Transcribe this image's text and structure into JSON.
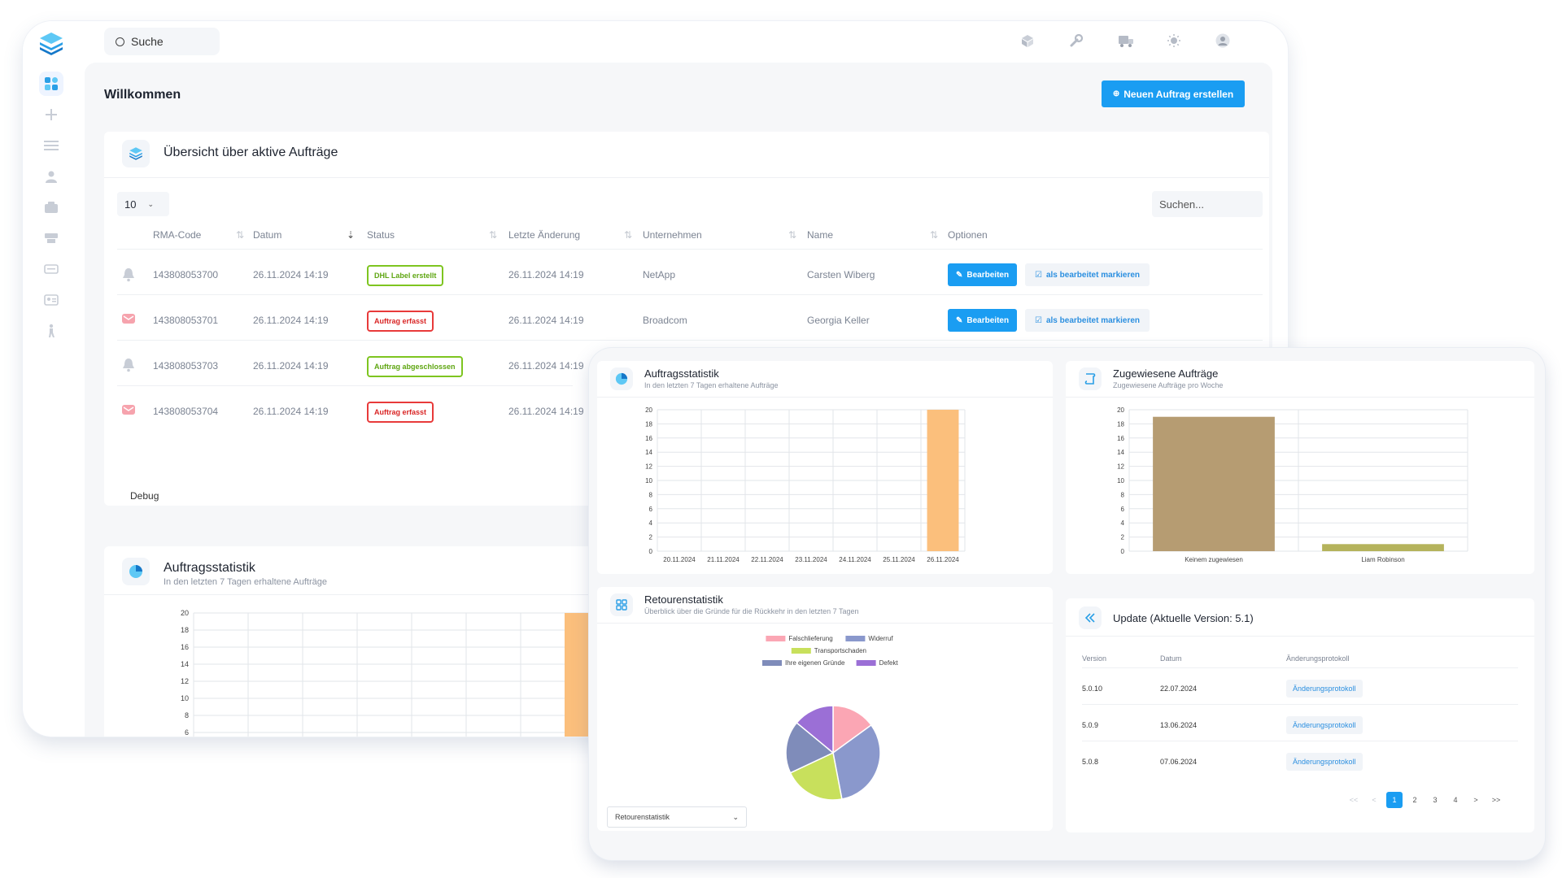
{
  "topbar": {
    "search_label": "Suche"
  },
  "page": {
    "welcome": "Willkommen",
    "new_order_label": "Neuen Auftrag erstellen"
  },
  "overview": {
    "title": "Übersicht über aktive Aufträge",
    "page_size": "10",
    "search_placeholder": "Suchen...",
    "columns": [
      "RMA-Code",
      "Datum",
      "Status",
      "Letzte Änderung",
      "Unternehmen",
      "Name",
      "Optionen"
    ],
    "rows": [
      {
        "icon": "bell-icon",
        "code": "143808053700",
        "date": "26.11.2024 14:19",
        "status": "DHL Label erstellt",
        "status_color": "green",
        "changed": "26.11.2024 14:19",
        "company": "NetApp",
        "name": "Carsten Wiberg",
        "edit": "Bearbeiten",
        "mark": "als bearbeitet markieren"
      },
      {
        "icon": "mail-icon",
        "code": "143808053701",
        "date": "26.11.2024 14:19",
        "status": "Auftrag erfasst",
        "status_color": "red",
        "changed": "26.11.2024 14:19",
        "company": "Broadcom",
        "name": "Georgia Keller",
        "edit": "Bearbeiten",
        "mark": "als bearbeitet markieren"
      },
      {
        "icon": "bell-icon",
        "code": "143808053703",
        "date": "26.11.2024 14:19",
        "status": "Auftrag abgeschlossen",
        "status_color": "green",
        "changed": "26.11.2024 14:19",
        "company": "",
        "name": "",
        "edit": "",
        "mark": ""
      },
      {
        "icon": "mail-icon",
        "code": "143808053704",
        "date": "26.11.2024 14:19",
        "status": "Auftrag erfasst",
        "status_color": "red",
        "changed": "26.11.2024 14:19",
        "company": "",
        "name": "",
        "edit": "",
        "mark": ""
      }
    ],
    "debug_label": "Debug"
  },
  "back_stats": {
    "title": "Auftragsstatistik",
    "subtitle": "In den letzten 7 Tagen erhaltene Aufträge",
    "yticks": [
      "20",
      "18",
      "16",
      "14",
      "12",
      "10",
      "8",
      "6"
    ]
  },
  "front": {
    "stats": {
      "title": "Auftragsstatistik",
      "subtitle": "In den letzten 7 Tagen erhaltene Aufträge"
    },
    "assigned": {
      "title": "Zugewiesene Aufträge",
      "subtitle": "Zugewiesene Aufträge pro Woche"
    },
    "returns": {
      "title": "Retourenstatistik",
      "subtitle": "Überblick über die Gründe für die Rückkehr in den letzten 7 Tagen",
      "select_value": "Retourenstatistik"
    },
    "update": {
      "title": "Update (Aktuelle Version: 5.1)",
      "columns": [
        "Version",
        "Datum",
        "Änderungsprotokoll"
      ],
      "rows": [
        {
          "version": "5.0.10",
          "date": "22.07.2024",
          "link": "Änderungsprotokoll"
        },
        {
          "version": "5.0.9",
          "date": "13.06.2024",
          "link": "Änderungsprotokoll"
        },
        {
          "version": "5.0.8",
          "date": "07.06.2024",
          "link": "Änderungsprotokoll"
        }
      ],
      "pagination": [
        "<<",
        "<",
        "1",
        "2",
        "3",
        "4",
        ">",
        ">>"
      ],
      "active_page": "1"
    }
  },
  "chart_data": [
    {
      "type": "bar",
      "title": "Auftragsstatistik",
      "categories": [
        "20.11.2024",
        "21.11.2024",
        "22.11.2024",
        "23.11.2024",
        "24.11.2024",
        "25.11.2024",
        "26.11.2024"
      ],
      "values": [
        0,
        0,
        0,
        0,
        0,
        0,
        20
      ],
      "ylim": [
        0,
        20
      ],
      "yticks": [
        "0",
        "2",
        "4",
        "6",
        "8",
        "10",
        "12",
        "14",
        "16",
        "18",
        "20"
      ],
      "color": "#fbbf7c",
      "grid": true
    },
    {
      "type": "bar",
      "title": "Zugewiesene Aufträge",
      "categories": [
        "Keinem zugewiesen",
        "Liam Robinson"
      ],
      "values": [
        19,
        1
      ],
      "colors": [
        "#b69c72",
        "#b5b35c"
      ],
      "ylim": [
        0,
        20
      ],
      "yticks": [
        "0",
        "2",
        "4",
        "6",
        "8",
        "10",
        "12",
        "14",
        "16",
        "18",
        "20"
      ],
      "grid": true
    },
    {
      "type": "pie",
      "title": "Retourenstatistik",
      "legend": "top",
      "slices": [
        {
          "label": "Falschlieferung",
          "value": 15,
          "color": "#fba6b4"
        },
        {
          "label": "Widerruf",
          "value": 32,
          "color": "#8a98cc"
        },
        {
          "label": "Transportschaden",
          "value": 21,
          "color": "#c8e05c"
        },
        {
          "label": "Ihre eigenen Gründe",
          "value": 18,
          "color": "#7f8cba"
        },
        {
          "label": "Defekt",
          "value": 14,
          "color": "#9b6fd6"
        }
      ]
    }
  ]
}
